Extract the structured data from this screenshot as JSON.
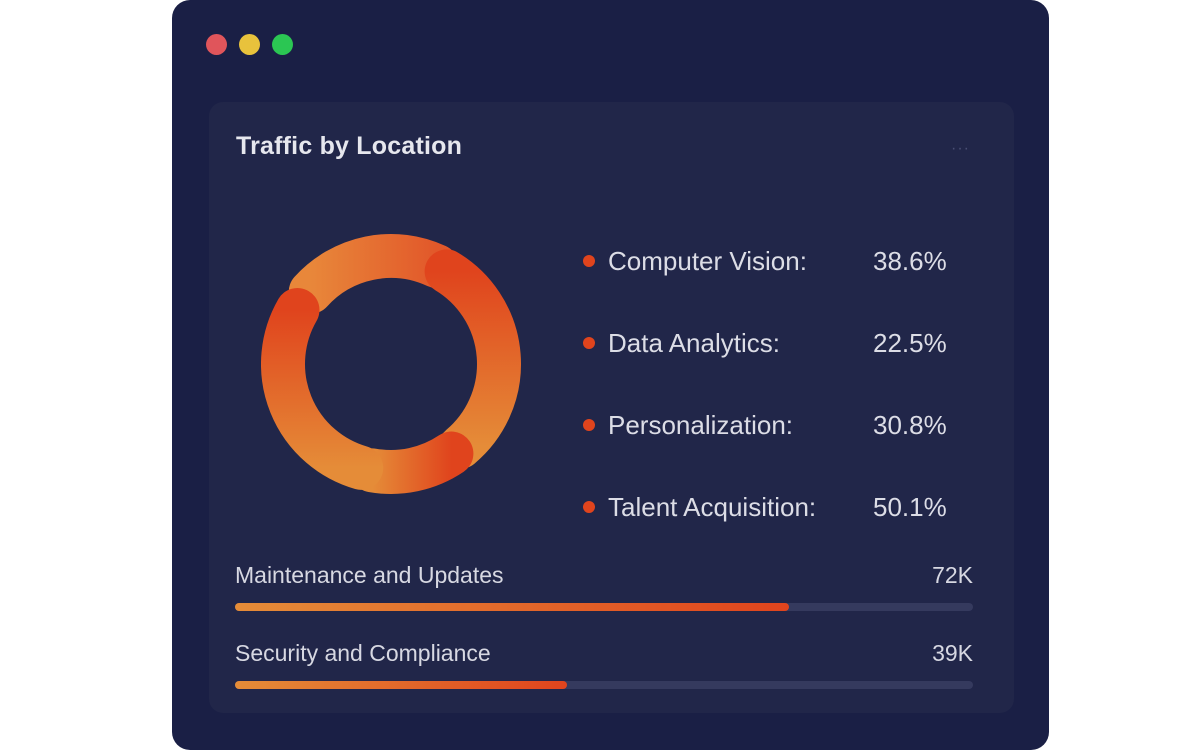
{
  "window": {
    "controls": [
      "close",
      "minimize",
      "maximize"
    ],
    "colors": {
      "close": "#e0555b",
      "minimize": "#e8c23c",
      "maximize": "#2bc653"
    }
  },
  "card": {
    "title": "Traffic by Location",
    "more_icon": "ellipsis-icon"
  },
  "legend": [
    {
      "label": "Computer Vision:",
      "value": "38.6%"
    },
    {
      "label": "Data Analytics:",
      "value": "22.5%"
    },
    {
      "label": "Personalization:",
      "value": "30.8%"
    },
    {
      "label": "Talent Acquisition:",
      "value": "50.1%"
    }
  ],
  "metrics": [
    {
      "label": "Maintenance and Updates",
      "value": "72K",
      "progress": 0.75
    },
    {
      "label": "Security and Compliance",
      "value": "39K",
      "progress": 0.45
    }
  ],
  "colors": {
    "background": "#1a1f45",
    "card": "#212649",
    "accent_start": "#e58c38",
    "accent_end": "#e0441d",
    "track": "#353a5e"
  }
}
